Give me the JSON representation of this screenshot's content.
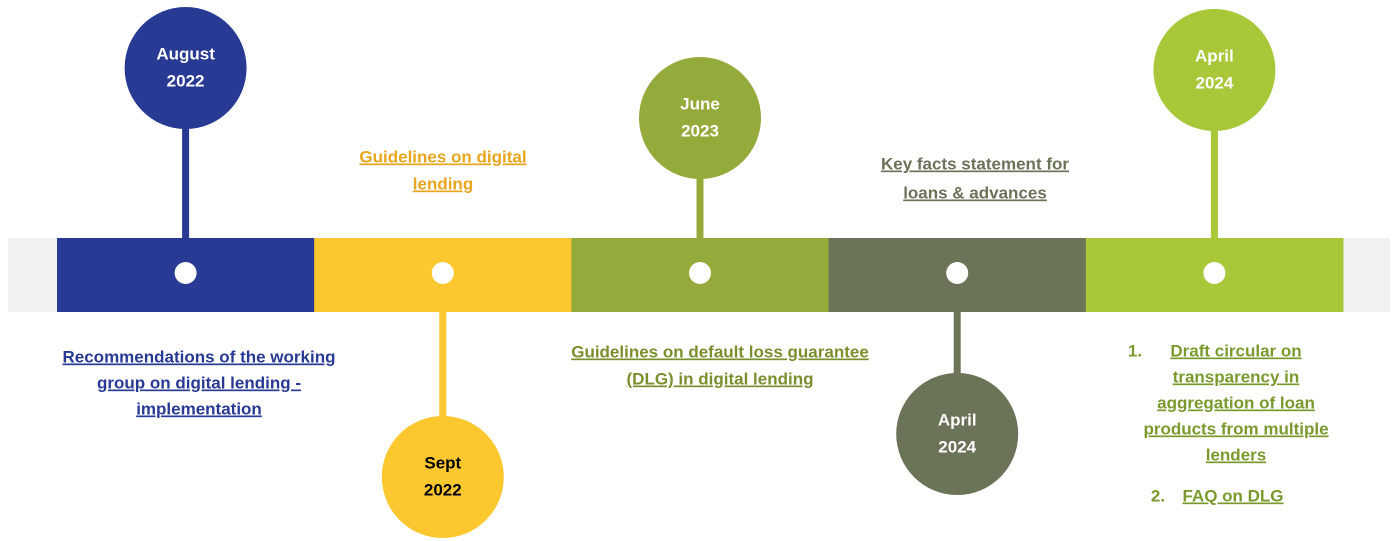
{
  "milestones": [
    {
      "date": [
        "August",
        "2022"
      ],
      "description": [
        "Recommendations of the working",
        "group on digital lending -",
        "implementation"
      ]
    },
    {
      "date": [
        "Sept",
        "2022"
      ],
      "description": [
        "Guidelines on digital",
        "lending"
      ]
    },
    {
      "date": [
        "June",
        "2023"
      ],
      "description": [
        "Guidelines on default loss guarantee",
        "(DLG) in digital lending"
      ]
    },
    {
      "date": [
        "April",
        "2024"
      ],
      "description": [
        "Key facts statement for",
        "loans & advances"
      ]
    },
    {
      "date": [
        "April",
        "2024"
      ],
      "items": [
        {
          "number": "1.",
          "lines": [
            "Draft circular on",
            "transparency in",
            "aggregation of loan",
            "products from multiple",
            "lenders"
          ]
        },
        {
          "number": "2.",
          "lines": [
            "FAQ on DLG"
          ]
        }
      ]
    }
  ]
}
